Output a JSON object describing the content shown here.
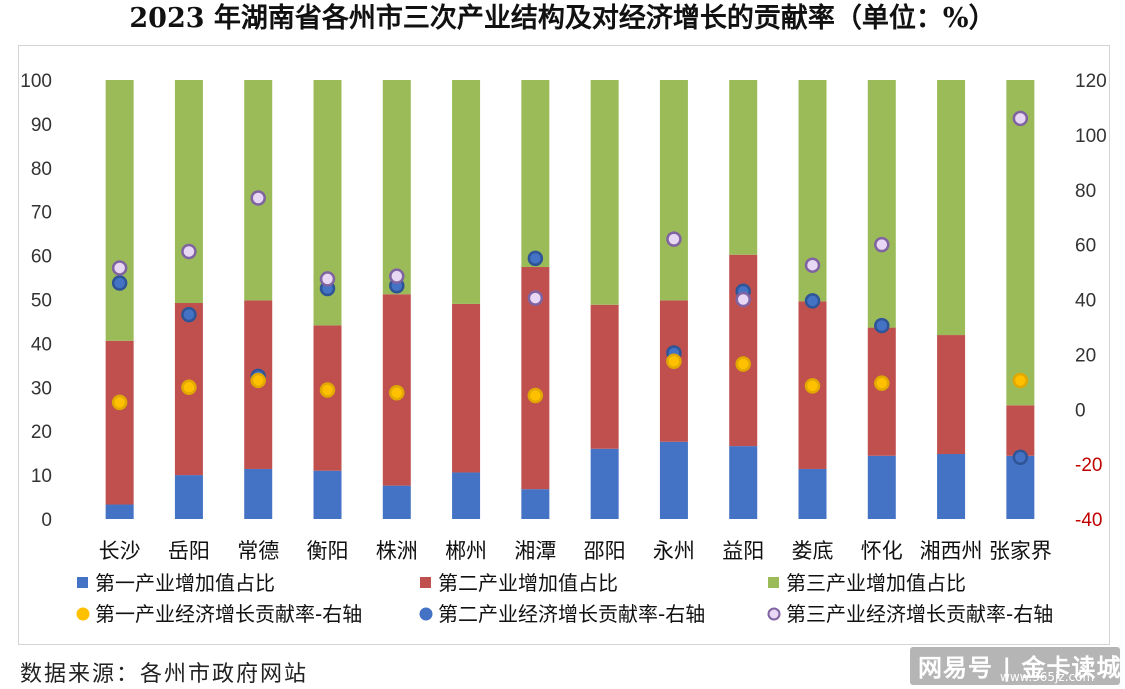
{
  "title": "2023 年湖南省各州市三次产业结构及对经济增长的贡献率（单位：%）",
  "source": "数据来源：各州市政府网站",
  "watermark": {
    "text": "网易号 | 金卡读城",
    "site": "www.365jz.com"
  },
  "colors": {
    "primary_bar": "#4472c4",
    "secondary_bar": "#c0504d",
    "tertiary_bar": "#9bbb59",
    "primary_dot": "#ffc000",
    "secondary_dot": "#4472c4",
    "tertiary_dot": "#8064a2",
    "right_axis_negative": "#c00000"
  },
  "chart_data": {
    "type": "bar",
    "stacked": true,
    "categories": [
      "长沙",
      "岳阳",
      "常德",
      "衡阳",
      "株洲",
      "郴州",
      "湘潭",
      "邵阳",
      "永州",
      "益阳",
      "娄底",
      "怀化",
      "湘西州",
      "张家界"
    ],
    "series": [
      {
        "name": "第一产业增加值占比",
        "axis": "left",
        "kind": "bar",
        "values": [
          3.3,
          10,
          11.4,
          11,
          7.6,
          10.6,
          6.8,
          16,
          17.6,
          16.6,
          11.4,
          14.4,
          14.8,
          14.4
        ]
      },
      {
        "name": "第二产业增加值占比",
        "axis": "left",
        "kind": "bar",
        "values": [
          37.3,
          39.2,
          38.4,
          33.1,
          43.6,
          38.4,
          50.6,
          32.8,
          32.2,
          43.6,
          38.2,
          29.2,
          27.1,
          11.5
        ]
      },
      {
        "name": "第三产业增加值占比",
        "axis": "left",
        "kind": "bar",
        "values": [
          59.4,
          50.8,
          50.2,
          55.9,
          48.8,
          51,
          42.6,
          51.2,
          50.2,
          39.8,
          50.4,
          56.4,
          58.1,
          74.1
        ]
      },
      {
        "name": "第一产业经济增长贡献率-右轴",
        "axis": "right",
        "kind": "scatter",
        "values": [
          2.5,
          8,
          10.5,
          7,
          6,
          null,
          5,
          null,
          17.5,
          16.5,
          8.5,
          9.5,
          null,
          10.5
        ]
      },
      {
        "name": "第二产业经济增长贡献率-右轴",
        "axis": "right",
        "kind": "scatter",
        "values": [
          46,
          34.5,
          12,
          44,
          45,
          null,
          55,
          null,
          20.5,
          43,
          39.5,
          30.5,
          null,
          -17.5
        ]
      },
      {
        "name": "第三产业经济增长贡献率-右轴",
        "axis": "right",
        "kind": "scatter",
        "values": [
          51.5,
          57.5,
          77,
          47.5,
          48.5,
          null,
          40.5,
          null,
          62,
          40,
          52.5,
          60,
          null,
          106
        ]
      }
    ],
    "left_axis": {
      "min": 0,
      "max": 100,
      "ticks": [
        "0",
        "10",
        "20",
        "30",
        "40",
        "50",
        "60",
        "70",
        "80",
        "90",
        "100"
      ]
    },
    "right_axis": {
      "min": -40,
      "max": 120,
      "ticks": [
        "-40",
        "-20",
        "0",
        "20",
        "40",
        "60",
        "80",
        "100",
        "120"
      ]
    },
    "legend_position": "bottom",
    "grid": false
  }
}
